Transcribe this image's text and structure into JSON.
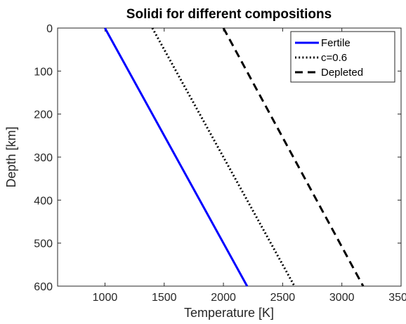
{
  "chart_data": {
    "type": "line",
    "title": "Solidi for different compositions",
    "xlabel": "Temperature [K]",
    "ylabel": "Depth [km]",
    "xlim": [
      600,
      3500
    ],
    "ylim": [
      0,
      600
    ],
    "y_reversed": true,
    "grid": false,
    "legend_position": "top-right",
    "xticks": [
      1000,
      1500,
      2000,
      2500,
      3000,
      3500
    ],
    "yticks": [
      0,
      100,
      200,
      300,
      400,
      500,
      600
    ],
    "series": [
      {
        "name": "Fertile",
        "color": "#0000ff",
        "style": "solid",
        "x": [
          1000,
          2200
        ],
        "y": [
          0,
          600
        ]
      },
      {
        "name": "c=0.6",
        "color": "#000000",
        "style": "dotted",
        "x": [
          1400,
          2600
        ],
        "y": [
          0,
          600
        ]
      },
      {
        "name": "Depleted",
        "color": "#000000",
        "style": "dashed",
        "x": [
          2000,
          3180
        ],
        "y": [
          0,
          600
        ]
      }
    ]
  }
}
